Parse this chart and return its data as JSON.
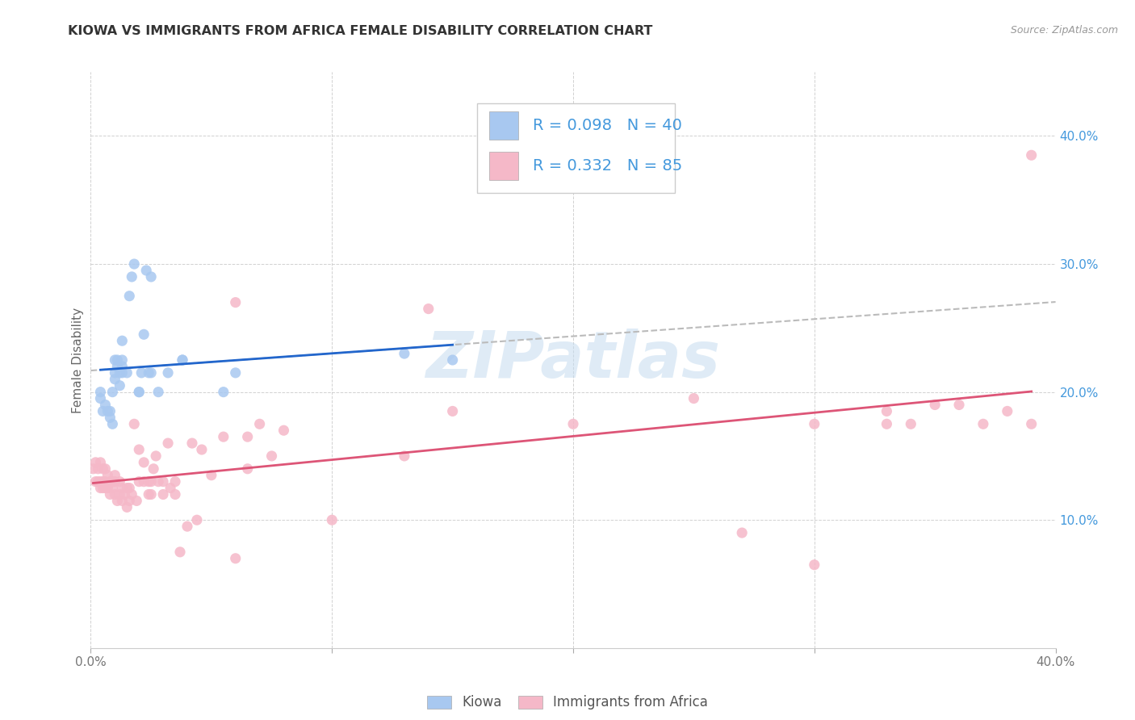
{
  "title": "KIOWA VS IMMIGRANTS FROM AFRICA FEMALE DISABILITY CORRELATION CHART",
  "source": "Source: ZipAtlas.com",
  "ylabel": "Female Disability",
  "xlim": [
    0.0,
    0.4
  ],
  "ylim": [
    0.0,
    0.45
  ],
  "yticks": [
    0.1,
    0.2,
    0.3,
    0.4
  ],
  "ytick_labels": [
    "10.0%",
    "20.0%",
    "30.0%",
    "40.0%"
  ],
  "xticks": [
    0.0,
    0.1,
    0.2,
    0.3,
    0.4
  ],
  "xtick_labels_bottom": [
    "0.0%",
    "",
    "",
    "",
    "40.0%"
  ],
  "legend_kiowa_r": "R = 0.098",
  "legend_kiowa_n": "N = 40",
  "legend_africa_r": "R = 0.332",
  "legend_africa_n": "N = 85",
  "kiowa_color": "#a8c8f0",
  "africa_color": "#f5b8c8",
  "kiowa_line_color": "#2266cc",
  "africa_line_color": "#dd5577",
  "trendline_dashed_color": "#bbbbbb",
  "background_color": "#ffffff",
  "watermark": "ZIPatlas",
  "legend_text_color": "#4499dd",
  "right_axis_color": "#4499dd",
  "kiowa_x": [
    0.004,
    0.004,
    0.005,
    0.006,
    0.007,
    0.008,
    0.008,
    0.009,
    0.009,
    0.01,
    0.01,
    0.01,
    0.011,
    0.011,
    0.012,
    0.012,
    0.013,
    0.013,
    0.013,
    0.013,
    0.015,
    0.016,
    0.017,
    0.018,
    0.02,
    0.02,
    0.021,
    0.022,
    0.023,
    0.024,
    0.025,
    0.025,
    0.028,
    0.032,
    0.038,
    0.038,
    0.055,
    0.06,
    0.13,
    0.15
  ],
  "kiowa_y": [
    0.195,
    0.2,
    0.185,
    0.19,
    0.185,
    0.185,
    0.18,
    0.175,
    0.2,
    0.21,
    0.215,
    0.225,
    0.22,
    0.225,
    0.205,
    0.215,
    0.22,
    0.225,
    0.215,
    0.24,
    0.215,
    0.275,
    0.29,
    0.3,
    0.2,
    0.2,
    0.215,
    0.245,
    0.295,
    0.215,
    0.29,
    0.215,
    0.2,
    0.215,
    0.225,
    0.225,
    0.2,
    0.215,
    0.23,
    0.225
  ],
  "africa_x": [
    0.001,
    0.002,
    0.002,
    0.003,
    0.003,
    0.004,
    0.004,
    0.004,
    0.005,
    0.005,
    0.005,
    0.006,
    0.006,
    0.006,
    0.007,
    0.007,
    0.008,
    0.008,
    0.009,
    0.009,
    0.01,
    0.01,
    0.01,
    0.011,
    0.012,
    0.012,
    0.013,
    0.013,
    0.014,
    0.015,
    0.015,
    0.016,
    0.016,
    0.017,
    0.018,
    0.019,
    0.02,
    0.02,
    0.022,
    0.022,
    0.024,
    0.024,
    0.025,
    0.025,
    0.026,
    0.027,
    0.028,
    0.03,
    0.03,
    0.032,
    0.033,
    0.035,
    0.035,
    0.037,
    0.04,
    0.042,
    0.044,
    0.046,
    0.05,
    0.055,
    0.06,
    0.065,
    0.07,
    0.075,
    0.08,
    0.1,
    0.13,
    0.14,
    0.15,
    0.2,
    0.25,
    0.27,
    0.3,
    0.33,
    0.34,
    0.35,
    0.36,
    0.37,
    0.38,
    0.39,
    0.06,
    0.065,
    0.3,
    0.33,
    0.39
  ],
  "africa_y": [
    0.14,
    0.13,
    0.145,
    0.13,
    0.14,
    0.125,
    0.13,
    0.145,
    0.125,
    0.13,
    0.14,
    0.125,
    0.13,
    0.14,
    0.125,
    0.135,
    0.12,
    0.13,
    0.125,
    0.13,
    0.12,
    0.13,
    0.135,
    0.115,
    0.12,
    0.13,
    0.115,
    0.125,
    0.12,
    0.11,
    0.125,
    0.115,
    0.125,
    0.12,
    0.175,
    0.115,
    0.13,
    0.155,
    0.13,
    0.145,
    0.12,
    0.13,
    0.12,
    0.13,
    0.14,
    0.15,
    0.13,
    0.12,
    0.13,
    0.16,
    0.125,
    0.12,
    0.13,
    0.075,
    0.095,
    0.16,
    0.1,
    0.155,
    0.135,
    0.165,
    0.07,
    0.14,
    0.175,
    0.15,
    0.17,
    0.1,
    0.15,
    0.265,
    0.185,
    0.175,
    0.195,
    0.09,
    0.065,
    0.185,
    0.175,
    0.19,
    0.19,
    0.175,
    0.185,
    0.385,
    0.27,
    0.165,
    0.175,
    0.175,
    0.175
  ]
}
